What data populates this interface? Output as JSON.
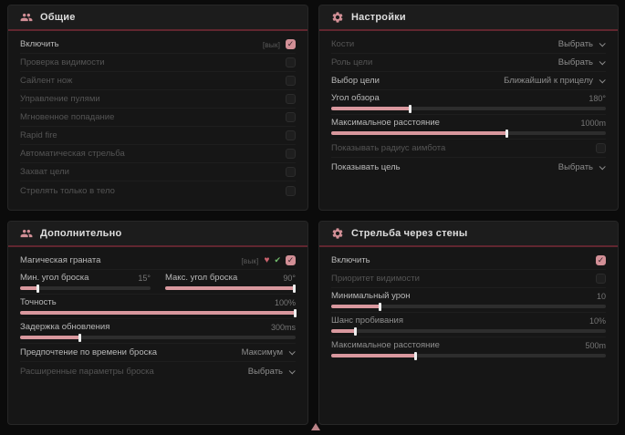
{
  "accent_color": "#d28f96",
  "header_underline_color": "#61262f",
  "icons": {
    "general_header": "users-icon",
    "settings_header": "gear-icon",
    "additional_header": "users-icon",
    "wallbang_header": "gear-icon",
    "grenade_flags": [
      "heart-icon",
      "check-icon"
    ],
    "cursor": "cursor-triangle-icon",
    "grenade_heart_glyph": "♥",
    "grenade_check_glyph": "✔",
    "checkbox_check_glyph": "✓"
  },
  "panels": {
    "general": {
      "title": "Общие",
      "rows": [
        {
          "label": "Включить",
          "tag": "[вык]",
          "checked": true
        },
        {
          "label": "Проверка видимости",
          "checked": false
        },
        {
          "label": "Сайлент нож",
          "checked": false
        },
        {
          "label": "Управление пулями",
          "checked": false
        },
        {
          "label": "Мгновенное попадание",
          "checked": false
        },
        {
          "label": "Rapid fire",
          "checked": false
        },
        {
          "label": "Автоматическая стрельба",
          "checked": false
        },
        {
          "label": "Захват цели",
          "checked": false
        },
        {
          "label": "Стрелять только в тело",
          "checked": false
        }
      ]
    },
    "settings": {
      "title": "Настройки",
      "rows": [
        {
          "label": "Кости",
          "value": "Выбрать"
        },
        {
          "label": "Роль цели",
          "value": "Выбрать"
        },
        {
          "label": "Выбор цели",
          "value": "Ближайший к прицелу"
        },
        {
          "label": "Угол обзора",
          "value": "180°",
          "fill": 29
        },
        {
          "label": "Максимальное расстояние",
          "value": "1000m",
          "fill": 64
        },
        {
          "label": "Показывать радиус аимбота",
          "checked": false
        },
        {
          "label": "Показывать цель",
          "value": "Выбрать"
        }
      ]
    },
    "additional": {
      "title": "Дополнительно",
      "rows": [
        {
          "label": "Магическая граната",
          "tag": "[вык]",
          "checked": true
        },
        {
          "left": {
            "label": "Мин. угол броска",
            "value": "15°",
            "fill": 14
          },
          "right": {
            "label": "Макс. угол броска",
            "value": "90°",
            "fill": 99
          }
        },
        {
          "label": "Точность",
          "value": "100%",
          "fill": 100
        },
        {
          "label": "Задержка обновления",
          "value": "300ms",
          "fill": 22
        },
        {
          "label": "Предпочтение по времени броска",
          "value": "Максимум"
        },
        {
          "label": "Расширенные параметры броска",
          "value": "Выбрать"
        }
      ]
    },
    "wallbang": {
      "title": "Стрельба через стены",
      "rows": [
        {
          "label": "Включить",
          "checked": true
        },
        {
          "label": "Приоритет видимости",
          "checked": false
        },
        {
          "label": "Минимальный урон",
          "value": "10",
          "fill": 18
        },
        {
          "label": "Шанс пробивания",
          "value": "10%",
          "fill": 9
        },
        {
          "label": "Максимальное расстояние",
          "value": "500m",
          "fill": 31
        }
      ]
    }
  }
}
